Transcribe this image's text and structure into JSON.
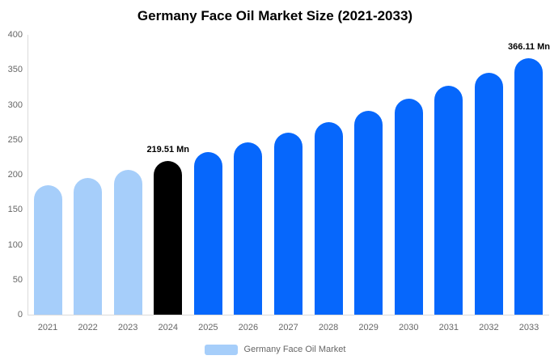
{
  "chart_data": {
    "type": "bar",
    "title": "Germany Face Oil Market Size (2021-2033)",
    "categories": [
      "2021",
      "2022",
      "2023",
      "2024",
      "2025",
      "2026",
      "2027",
      "2028",
      "2029",
      "2030",
      "2031",
      "2032",
      "2033"
    ],
    "values": [
      185.1,
      195.9,
      207.4,
      219.51,
      232.4,
      245.9,
      260.3,
      275.5,
      291.7,
      308.7,
      326.8,
      345.9,
      366.11
    ],
    "bar_colors": [
      "#A6CEFA",
      "#A6CEFA",
      "#A6CEFA",
      "#000000",
      "#0667FC",
      "#0667FC",
      "#0667FC",
      "#0667FC",
      "#0667FC",
      "#0667FC",
      "#0667FC",
      "#0667FC",
      "#0667FC"
    ],
    "data_labels": [
      {
        "category": "2024",
        "text": "219.51 Mn"
      },
      {
        "category": "2033",
        "text": "366.11 Mn"
      }
    ],
    "xlabel": "",
    "ylabel": "",
    "ylim": [
      0,
      400
    ],
    "yticks": [
      0,
      50,
      100,
      150,
      200,
      250,
      300,
      350,
      400
    ],
    "grid": false,
    "legend": {
      "position": "bottom",
      "items": [
        {
          "label": "Germany Face Oil Market",
          "color": "#A6CEFA"
        }
      ]
    }
  },
  "colors": {
    "background": "#FFFFFF",
    "axis_line": "#DBDBDB",
    "tick_text": "#666666",
    "title_text": "#000000",
    "data_label_text": "#000000"
  }
}
